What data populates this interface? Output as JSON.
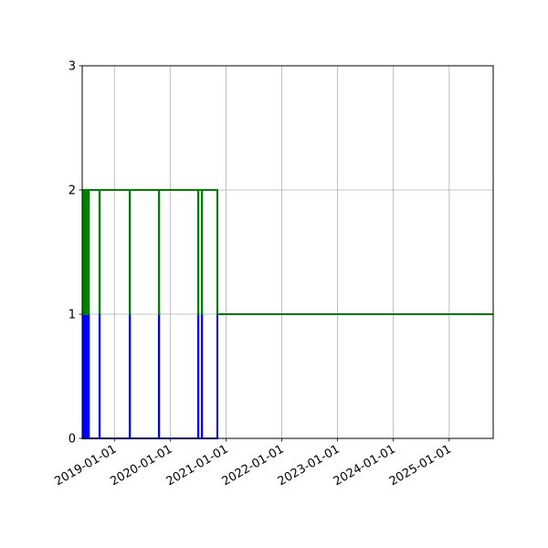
{
  "chart_data": {
    "type": "line",
    "step": "post",
    "title": "",
    "xlabel": "",
    "ylabel": "",
    "grid": true,
    "xlim": [
      "2018-06-04",
      "2025-10-16"
    ],
    "ylim": [
      0,
      3
    ],
    "yticks": [
      "0",
      "1",
      "2",
      "3"
    ],
    "xticks": [
      "2019-01-01",
      "2020-01-01",
      "2021-01-01",
      "2022-01-01",
      "2023-01-01",
      "2024-01-01",
      "2025-01-01"
    ],
    "series": [
      {
        "color": "#0000ff",
        "points": [
          [
            "2018-06-04",
            1
          ],
          [
            "2018-06-07",
            0
          ],
          [
            "2018-06-10",
            1
          ],
          [
            "2018-06-13",
            0
          ],
          [
            "2018-06-16",
            1
          ],
          [
            "2018-06-19",
            0
          ],
          [
            "2018-06-22",
            1
          ],
          [
            "2018-06-25",
            0
          ],
          [
            "2018-06-28",
            1
          ],
          [
            "2018-07-01",
            0
          ],
          [
            "2018-07-04",
            1
          ],
          [
            "2018-07-07",
            0
          ],
          [
            "2018-07-10",
            1
          ],
          [
            "2018-07-13",
            0
          ],
          [
            "2018-07-16",
            1
          ],
          [
            "2018-07-18",
            0
          ],
          [
            "2018-09-25",
            1
          ],
          [
            "2018-09-27",
            0
          ],
          [
            "2019-04-11",
            1
          ],
          [
            "2019-04-13",
            0
          ],
          [
            "2019-10-19",
            1
          ],
          [
            "2019-10-21",
            0
          ],
          [
            "2020-07-02",
            1
          ],
          [
            "2020-07-04",
            0
          ],
          [
            "2020-07-26",
            1
          ],
          [
            "2020-07-28",
            0
          ],
          [
            "2020-11-05",
            1
          ],
          [
            "2025-10-16",
            1
          ]
        ]
      },
      {
        "color": "#008000",
        "points": [
          [
            "2018-06-04",
            1
          ],
          [
            "2018-06-07",
            2
          ],
          [
            "2018-06-10",
            1
          ],
          [
            "2018-06-13",
            2
          ],
          [
            "2018-06-16",
            1
          ],
          [
            "2018-06-19",
            2
          ],
          [
            "2018-06-22",
            1
          ],
          [
            "2018-06-25",
            2
          ],
          [
            "2018-06-28",
            1
          ],
          [
            "2018-07-01",
            2
          ],
          [
            "2018-07-04",
            1
          ],
          [
            "2018-07-07",
            2
          ],
          [
            "2018-07-10",
            1
          ],
          [
            "2018-07-13",
            2
          ],
          [
            "2018-07-16",
            1
          ],
          [
            "2018-07-18",
            2
          ],
          [
            "2018-09-25",
            1
          ],
          [
            "2018-09-27",
            2
          ],
          [
            "2019-04-11",
            1
          ],
          [
            "2019-04-13",
            2
          ],
          [
            "2019-10-19",
            1
          ],
          [
            "2019-10-21",
            2
          ],
          [
            "2020-07-02",
            1
          ],
          [
            "2020-07-04",
            2
          ],
          [
            "2020-07-26",
            1
          ],
          [
            "2020-07-28",
            2
          ],
          [
            "2020-11-05",
            1
          ],
          [
            "2025-10-16",
            1
          ]
        ]
      }
    ]
  }
}
